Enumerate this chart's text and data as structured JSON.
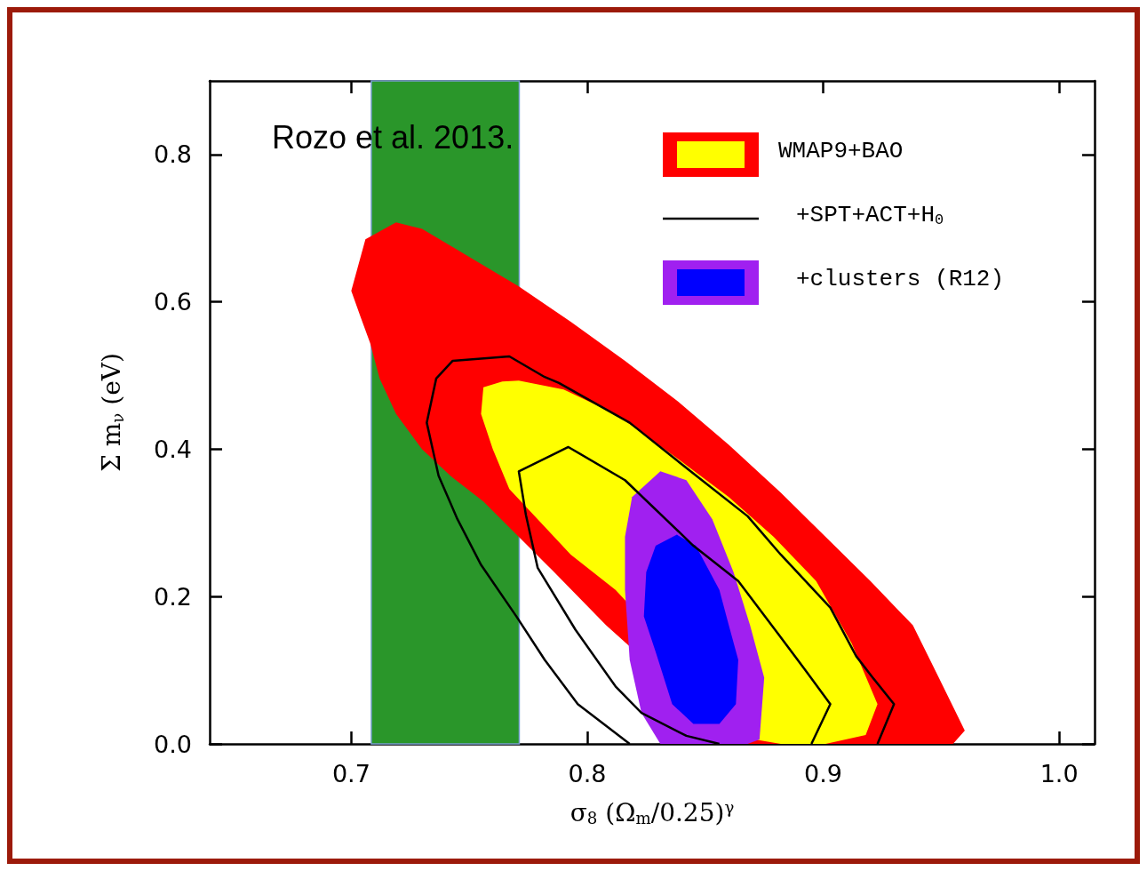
{
  "chart_data": {
    "type": "area",
    "xlabel": "σ$_{8}$ (Ω$_{m}$/0.25)$^{γ}$",
    "ylabel": "Σ m$_{ν}$ (eV)",
    "annotations": [
      "Rozo et al. 2013."
    ],
    "xlim": [
      0.64,
      1.015
    ],
    "xticks": [
      0.7,
      0.8,
      0.9,
      {
        "value": 1,
        "label": "1.0"
      }
    ],
    "ylim": [
      0,
      0.9
    ],
    "yticks": [
      {
        "value": 0,
        "label": "0.0"
      },
      0.2,
      0.4,
      0.6,
      0.8
    ],
    "grid": false,
    "legend": "top right",
    "series": [
      {
        "name": "WMAP9+BAO",
        "color": "#ff0000",
        "x": [
          0.7,
          0.706,
          0.719,
          0.73,
          0.749,
          0.771,
          0.793,
          0.816,
          0.838,
          0.86,
          0.882,
          0.901,
          0.92,
          0.938,
          0.949,
          0.96,
          0.955,
          0.864,
          0.849,
          0.834,
          0.823,
          0.808,
          0.786,
          0.771,
          0.756,
          0.742,
          0.73,
          0.719,
          0.712,
          0.708,
          0.704
        ],
        "values": [
          0.615,
          0.685,
          0.708,
          0.699,
          0.663,
          0.621,
          0.573,
          0.52,
          0.466,
          0.406,
          0.341,
          0.281,
          0.221,
          0.161,
          0.09,
          0.018,
          0,
          0,
          null,
          null,
          null,
          0.161,
          0.233,
          0.281,
          0.329,
          0.364,
          0.4,
          0.448,
          0.496,
          0.544,
          0.579
        ]
      },
      {
        "color": "#ffff00",
        "x": [
          0.756,
          0.764,
          0.771,
          0.79,
          0.812,
          0.838,
          0.86,
          0.879,
          0.897,
          0.912,
          0.923,
          0.918,
          0.901,
          0.882,
          0.871,
          0.86,
          0.845,
          0.827,
          0.812,
          0.793,
          0.779,
          0.767,
          0.76,
          0.755
        ],
        "values": [
          0.484,
          0.492,
          0.493,
          0.481,
          0.448,
          0.388,
          0.335,
          0.281,
          0.221,
          0.137,
          0.054,
          0.012,
          0,
          0,
          0.006,
          null,
          null,
          null,
          0.209,
          0.257,
          0.305,
          0.346,
          0.4,
          0.448
        ]
      },
      {
        "name": "+SPT+ACT+H$_{0}$",
        "type": "line",
        "color": "#000000",
        "x": [
          0.818,
          0.796,
          0.782,
          0.77,
          0.755,
          0.745,
          0.737,
          0.732,
          0.736,
          0.743,
          0.767,
          0.782,
          0.788,
          0.818,
          0.845,
          0.868,
          0.882,
          0.903,
          0.914,
          0.921,
          0.93,
          0.923
        ],
        "values": [
          0,
          0.054,
          0.114,
          0.173,
          0.243,
          0.305,
          0.364,
          0.436,
          0.496,
          0.52,
          0.526,
          0.498,
          0.49,
          0.436,
          0.367,
          0.309,
          0.257,
          0.185,
          0.119,
          0.09,
          0.054,
          0
        ]
      },
      {
        "type": "line",
        "color": "#000000",
        "x": [
          0.856,
          0.842,
          0.823,
          0.812,
          0.795,
          0.779,
          0.774,
          0.771,
          0.792,
          0.816,
          0.845,
          0.864,
          0.881,
          0.892,
          0.903,
          0.895
        ],
        "values": [
          0,
          0.011,
          0.042,
          0.078,
          0.155,
          0.239,
          0.311,
          0.37,
          0.403,
          0.358,
          0.269,
          0.221,
          0.149,
          0.102,
          0.054,
          0
        ]
      },
      {
        "name": "+clusters (R12)",
        "color": "#a020f0",
        "x": [
          0.819,
          0.831,
          0.842,
          0.853,
          0.862,
          0.869,
          0.875,
          0.873,
          0.868,
          0.831,
          0.823,
          0.818,
          0.816,
          0.816
        ],
        "values": [
          0.335,
          0.37,
          0.358,
          0.305,
          0.233,
          0.161,
          0.09,
          0.006,
          0,
          0,
          0.042,
          0.114,
          0.209,
          0.281
        ]
      },
      {
        "color": "#0000ff",
        "x": [
          0.829,
          0.838,
          0.846,
          0.856,
          0.86,
          0.864,
          0.863,
          0.856,
          0.845,
          0.836,
          0.829,
          0.824,
          0.825
        ],
        "values": [
          0.269,
          0.284,
          0.269,
          0.209,
          0.161,
          0.114,
          0.054,
          0.027,
          0.027,
          0.054,
          0.125,
          0.173,
          0.233
        ]
      }
    ],
    "bands": [
      {
        "axis": "x",
        "from": 0.7085,
        "to": 0.7712,
        "color": "#2a962a"
      }
    ]
  }
}
